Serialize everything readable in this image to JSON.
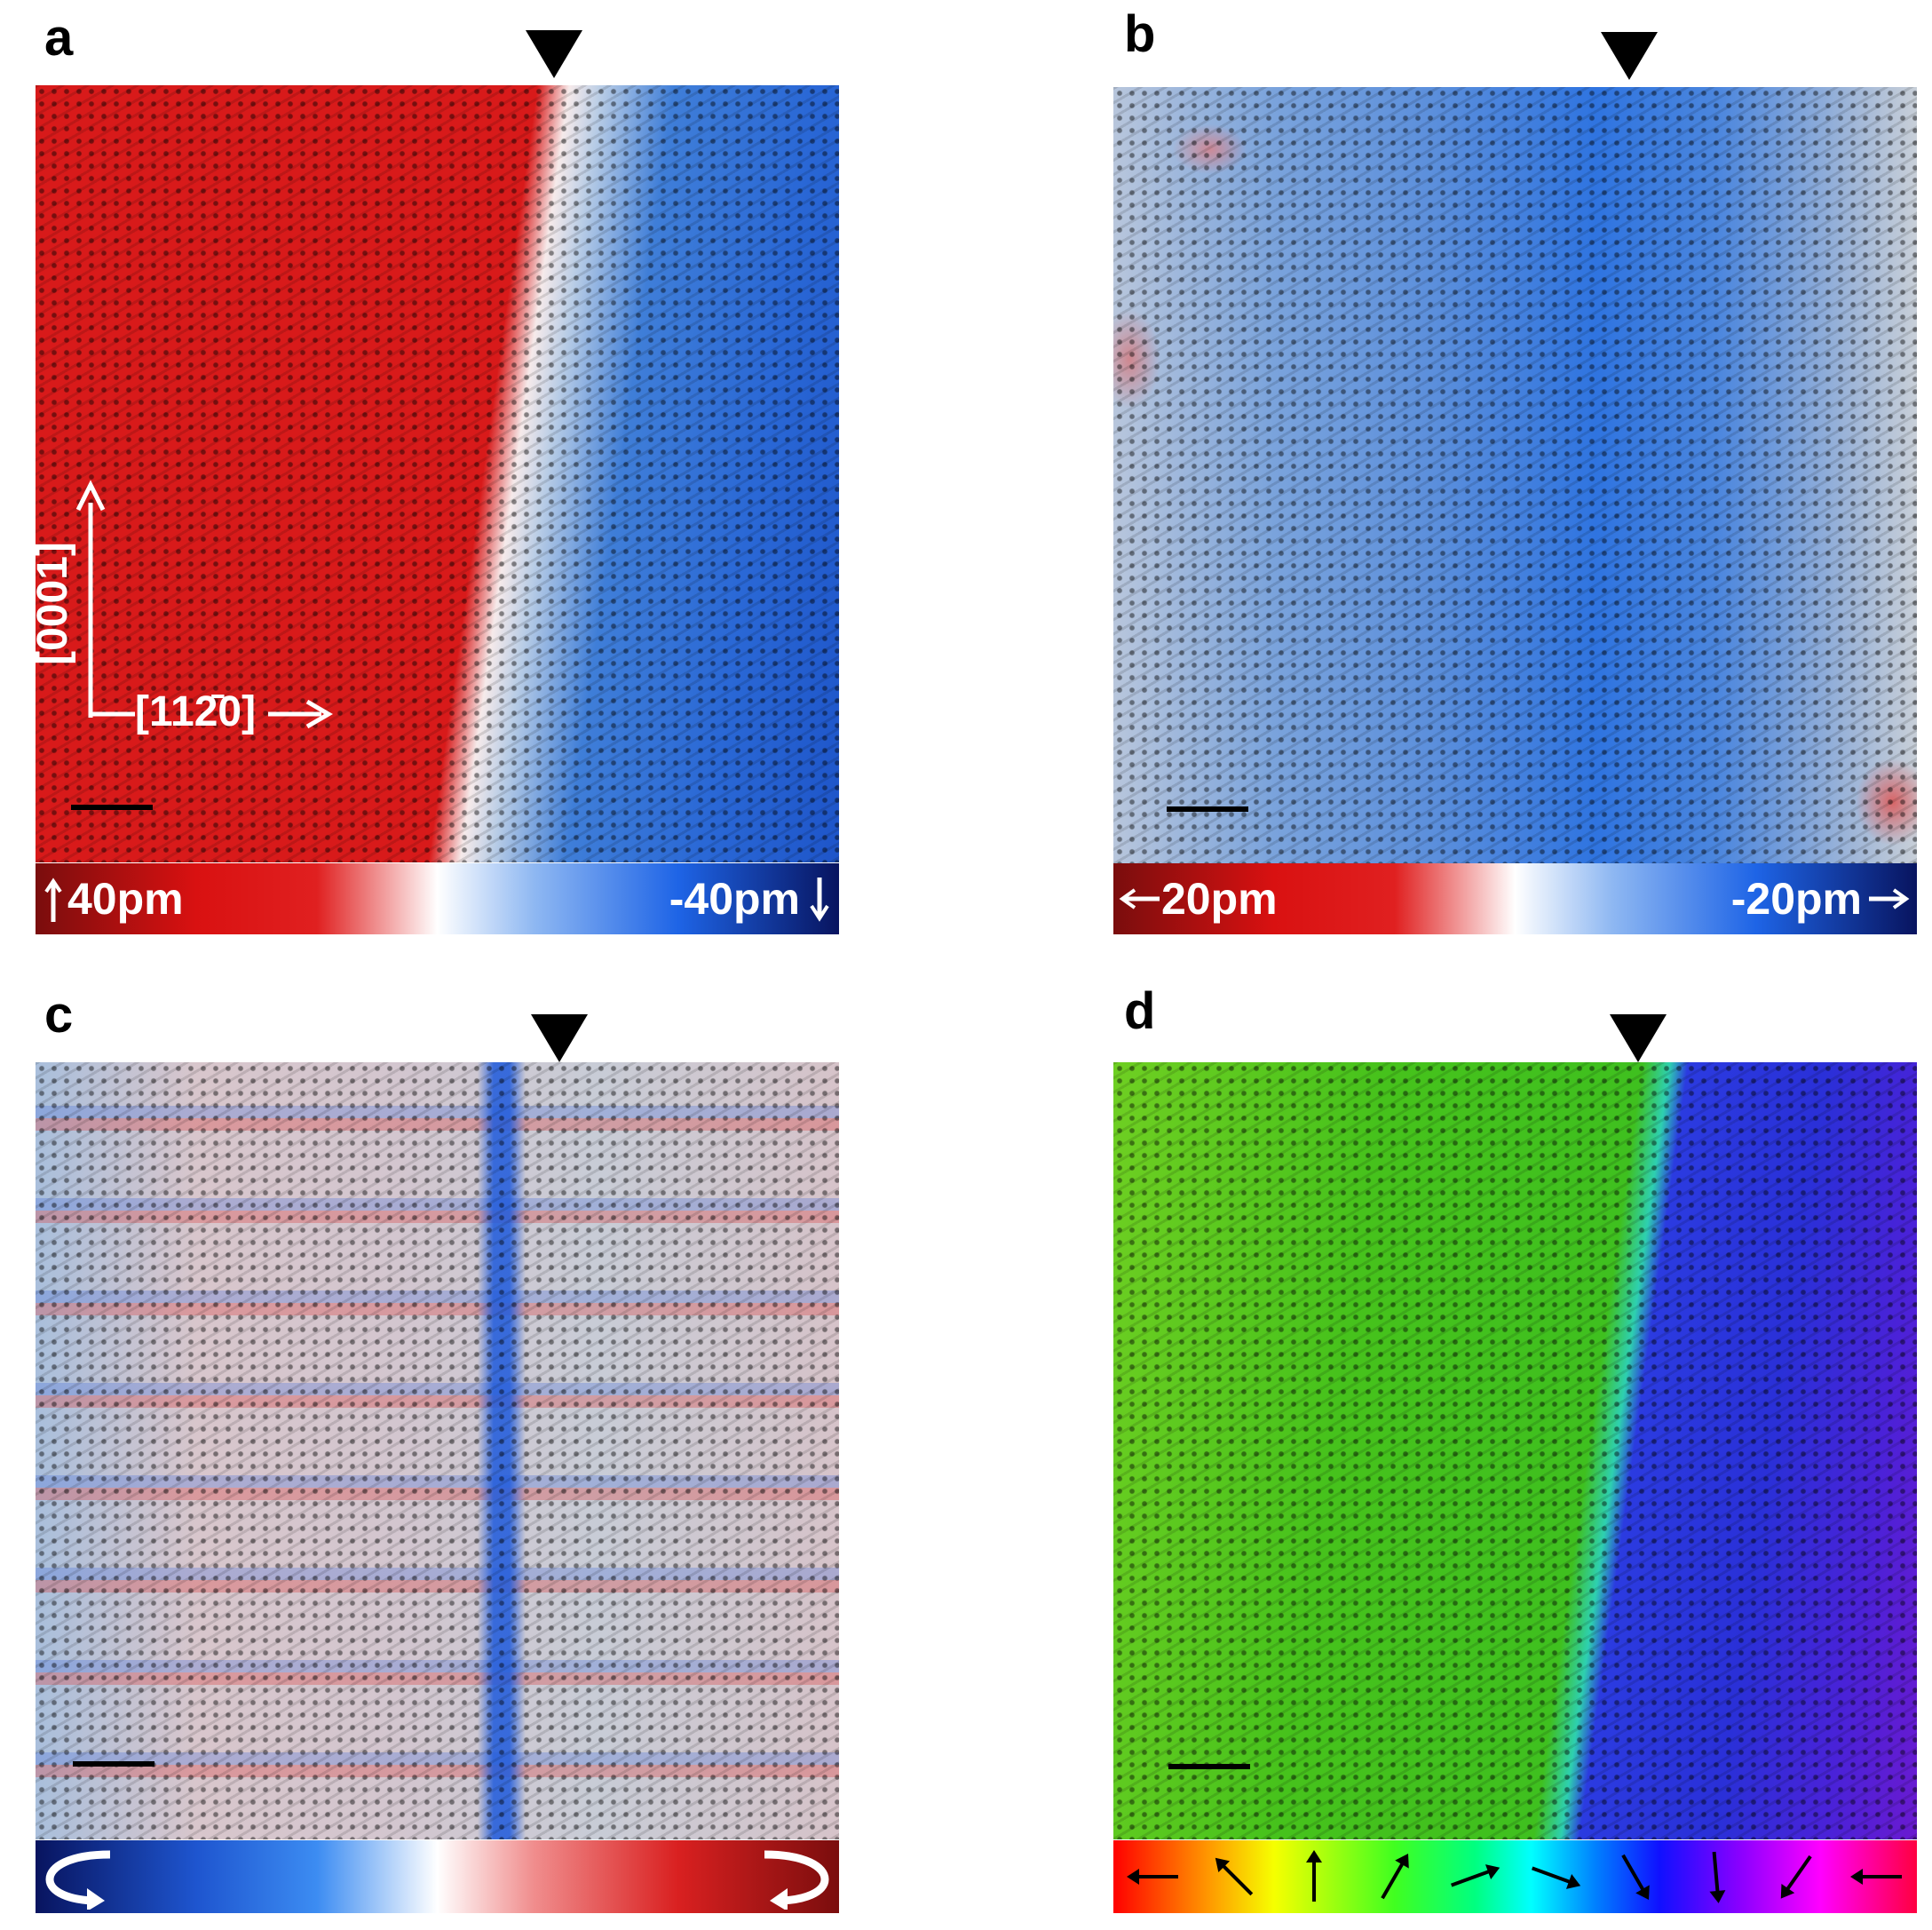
{
  "panels": [
    {
      "letter": "a",
      "colorbar": {
        "left_label": "40pm",
        "right_label": "-40pm",
        "left_arrow": "up-arrow",
        "right_arrow": "down-arrow"
      }
    },
    {
      "letter": "b",
      "colorbar": {
        "left_label": "20pm",
        "right_label": "-20pm",
        "left_arrow": "left-arrow",
        "right_arrow": "right-arrow"
      }
    },
    {
      "letter": "c",
      "colorbar": {
        "left_icon": "counterclockwise-rotation-icon",
        "right_icon": "clockwise-rotation-icon"
      }
    },
    {
      "letter": "d",
      "colorbar": {
        "arrow_angles_deg": [
          180,
          135,
          90,
          60,
          20,
          -20,
          -60,
          -85,
          -125,
          180
        ]
      }
    }
  ],
  "axes": {
    "vertical": "[0001]",
    "horizontal": "[112̄0]"
  },
  "colors": {
    "red": "#d81a1a",
    "blue": "#1c5fd4",
    "green": "#3fc01f",
    "violet": "#5a1ad8",
    "black": "#000000",
    "white": "#ffffff"
  }
}
